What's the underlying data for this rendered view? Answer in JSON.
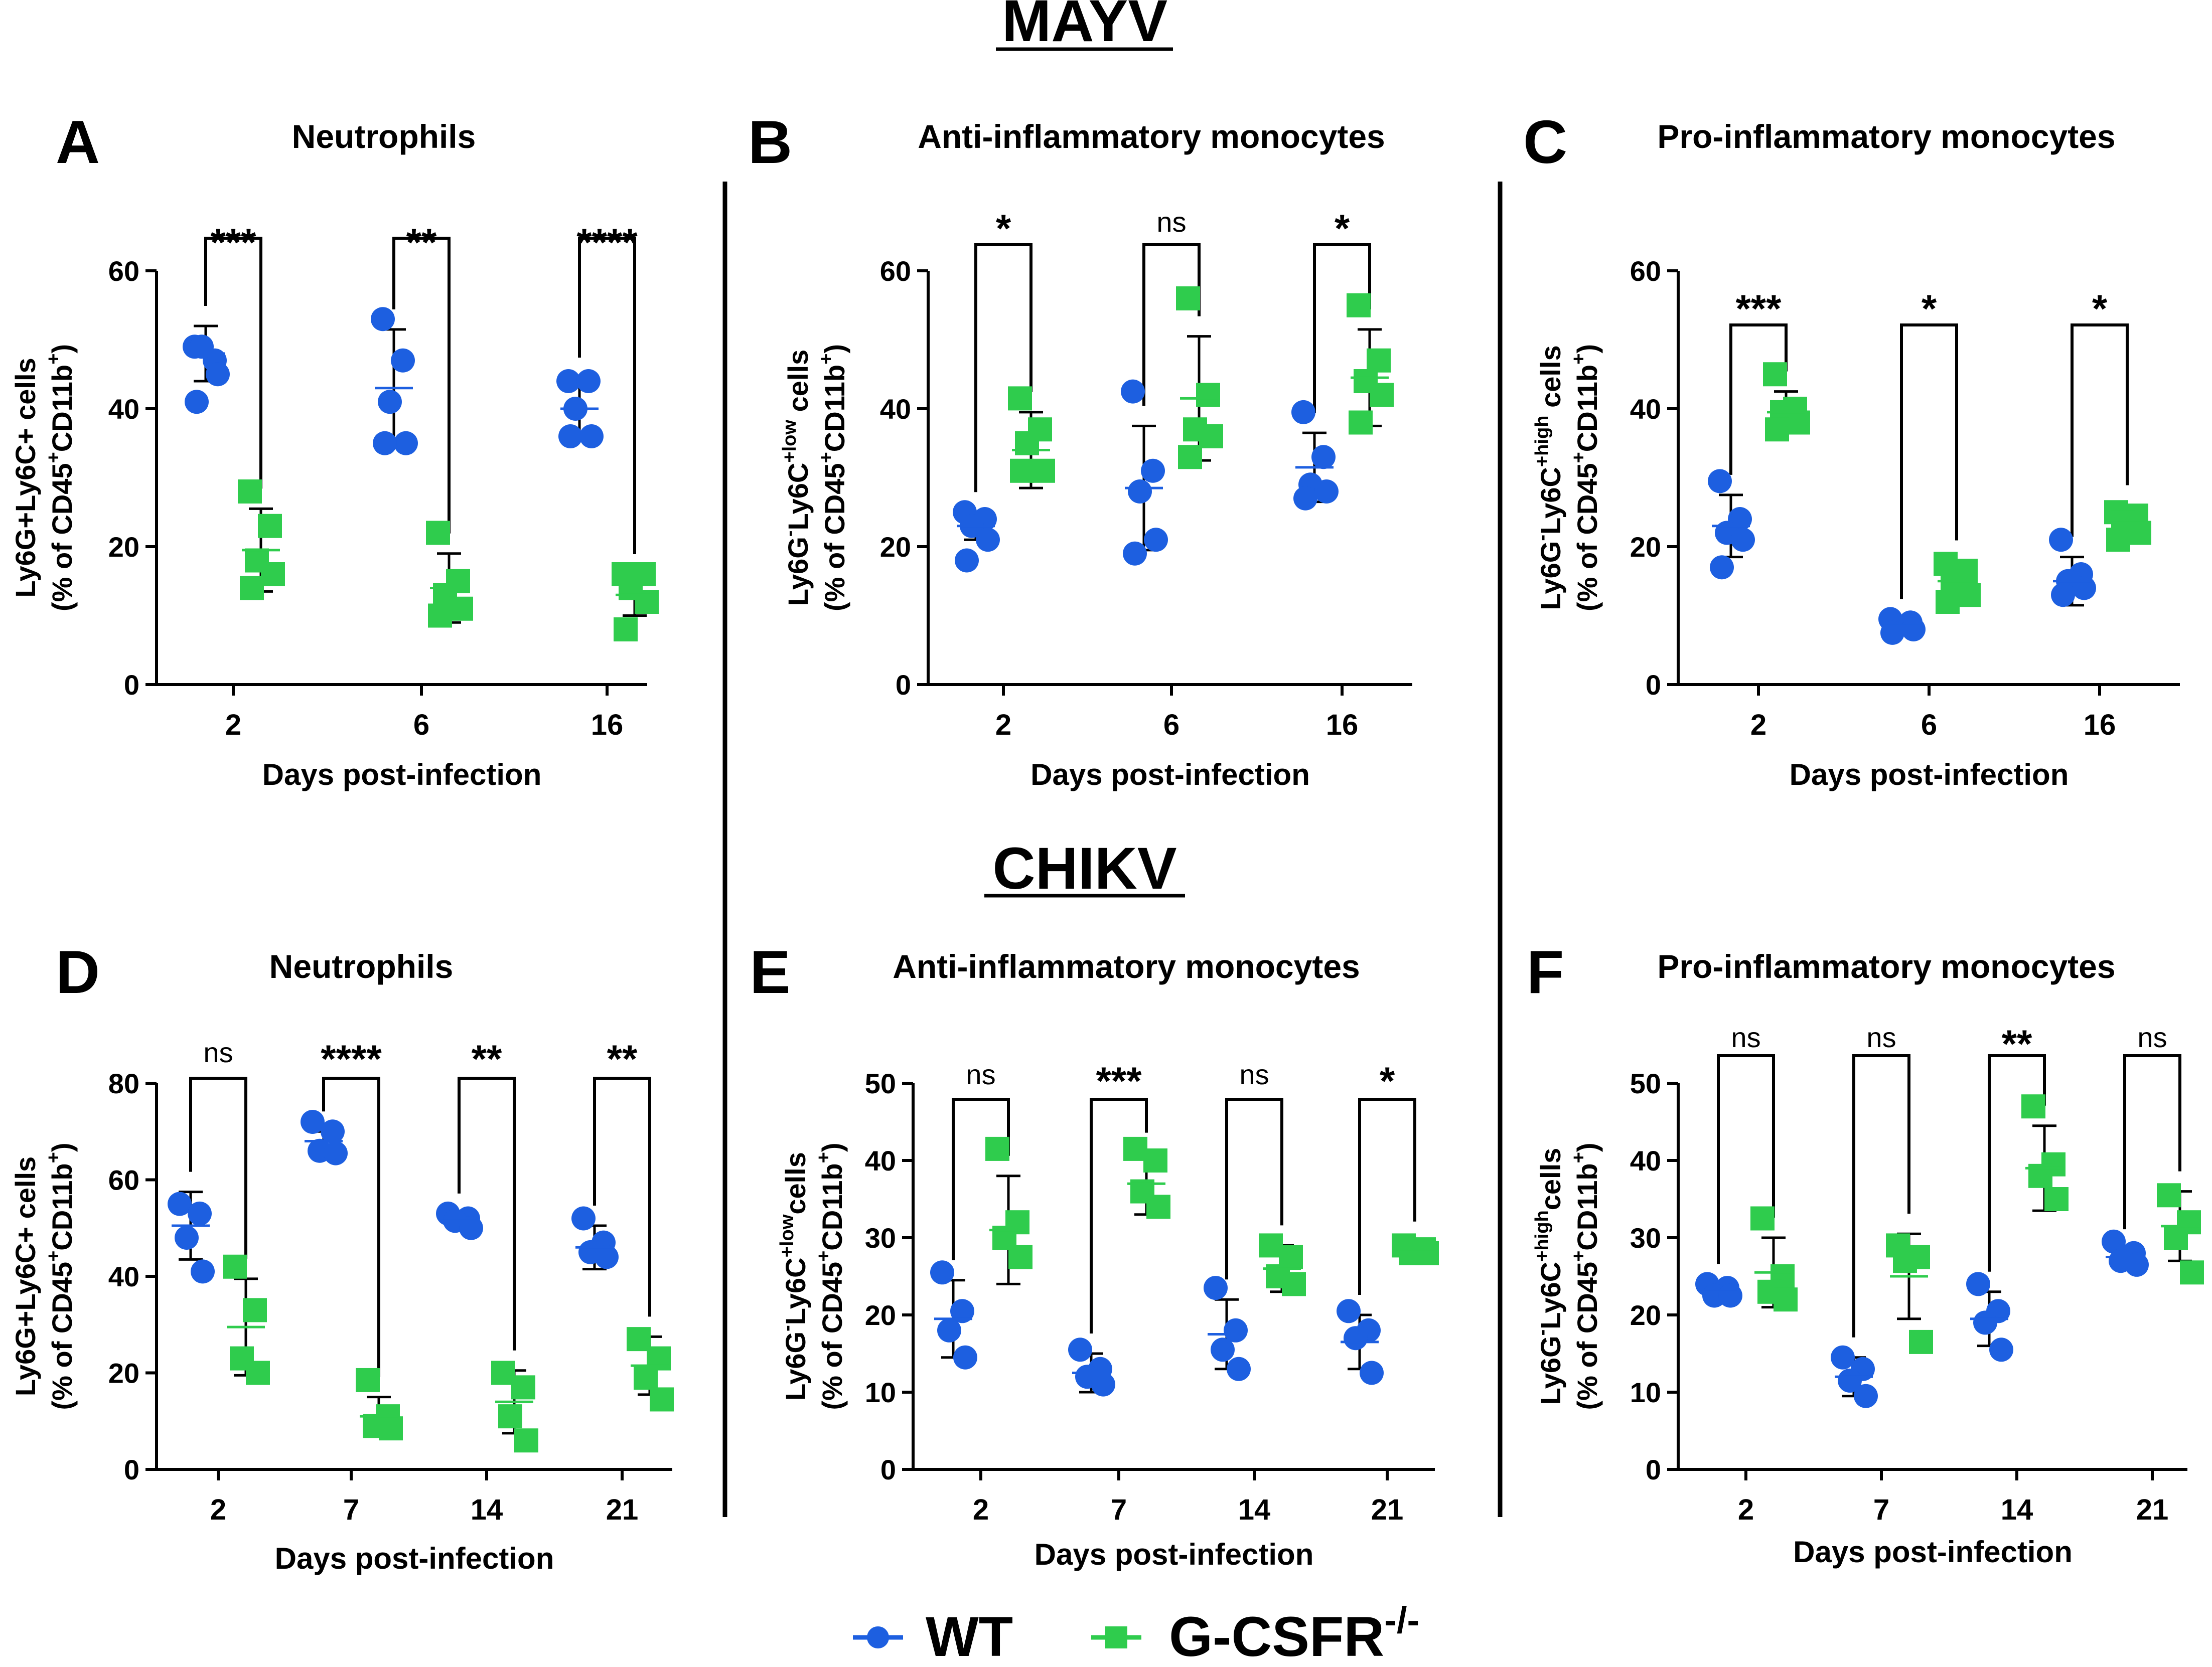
{
  "figure": {
    "mayv_heading": "MAYV",
    "chikv_heading": "CHIKV",
    "legend": {
      "wt": "WT",
      "ko_base": "G-CSFR",
      "ko_sup": "-/-"
    },
    "colors": {
      "wt": "#1d5fe0",
      "ko": "#2fcc4d",
      "ink": "#000000"
    }
  },
  "chart_data": [
    {
      "id": "A",
      "type": "scatter",
      "panel_label": "A",
      "title": "Neutrophils",
      "ylabel_parts": [
        [
          "Ly6G+Ly6C+ cells",
          ""
        ]
      ],
      "ylabel_line2": [
        [
          "(% of CD45",
          ""
        ],
        [
          "+",
          "sup"
        ],
        [
          "CD11b",
          ""
        ],
        [
          "+",
          "sup"
        ],
        [
          ")",
          ""
        ]
      ],
      "xlabel": "Days post-infection",
      "ylim": [
        0,
        60
      ],
      "yticks": [
        0,
        20,
        40,
        60
      ],
      "categories": [
        "2",
        "6",
        "16"
      ],
      "significance": [
        "***",
        "**",
        "****"
      ],
      "series": [
        {
          "name": "WT",
          "mean": [
            48,
            43,
            40
          ],
          "sd": [
            4,
            8.5,
            4.5
          ],
          "points": [
            [
              49,
              47,
              49,
              45,
              41
            ],
            [
              53,
              47,
              41,
              35,
              35
            ],
            [
              44,
              44,
              40,
              36,
              36
            ]
          ]
        },
        {
          "name": "G-CSFR-/-",
          "mean": [
            19.5,
            14,
            13
          ],
          "sd": [
            6,
            5,
            3
          ],
          "points": [
            [
              28,
              23,
              18,
              16,
              14
            ],
            [
              22,
              15,
              13,
              11,
              10
            ],
            [
              16,
              16,
              14,
              12,
              8
            ]
          ]
        }
      ]
    },
    {
      "id": "B",
      "type": "scatter",
      "panel_label": "B",
      "title": "Anti-inflammatory monocytes",
      "ylabel_parts": [
        [
          "Ly6G",
          ""
        ],
        [
          "-",
          "sup"
        ],
        [
          "Ly6C",
          ""
        ],
        [
          "+low",
          "sup"
        ],
        [
          " cells",
          ""
        ]
      ],
      "ylabel_line2": [
        [
          "(% of CD45",
          ""
        ],
        [
          "+",
          "sup"
        ],
        [
          "CD11b",
          ""
        ],
        [
          "+",
          "sup"
        ],
        [
          ")",
          ""
        ]
      ],
      "xlabel": "Days post-infection",
      "ylim": [
        0,
        60
      ],
      "yticks": [
        0,
        20,
        40,
        60
      ],
      "categories": [
        "2",
        "6",
        "16"
      ],
      "significance": [
        "*",
        "ns",
        "*"
      ],
      "series": [
        {
          "name": "WT",
          "mean": [
            23,
            28.5,
            31.5
          ],
          "sd": [
            2,
            9,
            5
          ],
          "points": [
            [
              25,
              24,
              23,
              21,
              18
            ],
            [
              42.5,
              31,
              28,
              21,
              19
            ],
            [
              39.5,
              33,
              29,
              28,
              27
            ]
          ]
        },
        {
          "name": "G-CSFR-/-",
          "mean": [
            34,
            41.5,
            44.5
          ],
          "sd": [
            5.5,
            9,
            7
          ],
          "points": [
            [
              41.5,
              37,
              35,
              31,
              31
            ],
            [
              56,
              42,
              37,
              36,
              33
            ],
            [
              55,
              47,
              44,
              42,
              38
            ]
          ]
        }
      ]
    },
    {
      "id": "C",
      "type": "scatter",
      "panel_label": "C",
      "title": "Pro-inflammatory monocytes",
      "ylabel_parts": [
        [
          "Ly6G",
          ""
        ],
        [
          "-",
          "sup"
        ],
        [
          "Ly6C",
          ""
        ],
        [
          "+high",
          "sup"
        ],
        [
          " cells",
          ""
        ]
      ],
      "ylabel_line2": [
        [
          "(% of CD45",
          ""
        ],
        [
          "+",
          "sup"
        ],
        [
          "CD11b",
          ""
        ],
        [
          "+",
          "sup"
        ],
        [
          ")",
          ""
        ]
      ],
      "xlabel": "Days post-infection",
      "ylim": [
        0,
        60
      ],
      "yticks": [
        0,
        20,
        40,
        60
      ],
      "categories": [
        "2",
        "6",
        "16"
      ],
      "significance": [
        "***",
        "*",
        "*"
      ],
      "series": [
        {
          "name": "WT",
          "mean": [
            23,
            8.5,
            15
          ],
          "sd": [
            4.5,
            1,
            3.5
          ],
          "points": [
            [
              29.5,
              24,
              22,
              21,
              17
            ],
            [
              9.5,
              9,
              8.5,
              8,
              7.5
            ],
            [
              21,
              16,
              15,
              14,
              13
            ]
          ]
        },
        {
          "name": "G-CSFR-/-",
          "mean": [
            39.5,
            15,
            23.5
          ],
          "sd": [
            3,
            3,
            2.5
          ],
          "points": [
            [
              45,
              40,
              39.5,
              38,
              37
            ],
            [
              17.5,
              16.5,
              15,
              13,
              12
            ],
            [
              25,
              24.5,
              23.5,
              22,
              21
            ]
          ]
        }
      ]
    },
    {
      "id": "D",
      "type": "scatter",
      "panel_label": "D",
      "title": "Neutrophils",
      "ylabel_parts": [
        [
          "Ly6G+Ly6C+ cells",
          ""
        ]
      ],
      "ylabel_line2": [
        [
          "(% of CD45",
          ""
        ],
        [
          "+",
          "sup"
        ],
        [
          "CD11b",
          ""
        ],
        [
          "+",
          "sup"
        ],
        [
          ")",
          ""
        ]
      ],
      "xlabel": "Days post-infection",
      "ylim": [
        0,
        80
      ],
      "yticks": [
        0,
        20,
        40,
        60,
        80
      ],
      "categories": [
        "2",
        "7",
        "14",
        "21"
      ],
      "significance": [
        "ns",
        "****",
        "**",
        "**"
      ],
      "series": [
        {
          "name": "WT",
          "mean": [
            50.5,
            68,
            51.5,
            46
          ],
          "sd": [
            7,
            2,
            1.5,
            4.5
          ],
          "points": [
            [
              55,
              53,
              48,
              41
            ],
            [
              72,
              70,
              66,
              65.5
            ],
            [
              53,
              52,
              51.5,
              50
            ],
            [
              52,
              47,
              45,
              44
            ]
          ]
        },
        {
          "name": "G-CSFR-/-",
          "mean": [
            29.5,
            11,
            14,
            21.5
          ],
          "sd": [
            10,
            4,
            6.5,
            6
          ],
          "points": [
            [
              42,
              33,
              23,
              20
            ],
            [
              18.5,
              11,
              9,
              8.5
            ],
            [
              20,
              17,
              11,
              6
            ],
            [
              27,
              23,
              19,
              14.5
            ]
          ]
        }
      ]
    },
    {
      "id": "E",
      "type": "scatter",
      "panel_label": "E",
      "title": "Anti-inflammatory monocytes",
      "ylabel_parts": [
        [
          "Ly6G",
          ""
        ],
        [
          "-",
          "sup"
        ],
        [
          "Ly6C",
          ""
        ],
        [
          "+low",
          "sup"
        ],
        [
          "cells",
          ""
        ]
      ],
      "ylabel_line2": [
        [
          "(% of CD45",
          ""
        ],
        [
          "+",
          "sup"
        ],
        [
          "CD11b",
          ""
        ],
        [
          "+",
          "sup"
        ],
        [
          ")",
          ""
        ]
      ],
      "xlabel": "Days post-infection",
      "ylim": [
        0,
        50
      ],
      "yticks": [
        0,
        10,
        20,
        30,
        40,
        50
      ],
      "categories": [
        "2",
        "7",
        "14",
        "21"
      ],
      "significance": [
        "ns",
        "***",
        "ns",
        "*"
      ],
      "series": [
        {
          "name": "WT",
          "mean": [
            19.5,
            12.5,
            17.5,
            16.5
          ],
          "sd": [
            5,
            2.5,
            4.5,
            3.5
          ],
          "points": [
            [
              25.5,
              20.5,
              18,
              14.5
            ],
            [
              15.5,
              13,
              12,
              11
            ],
            [
              23.5,
              18,
              15.5,
              13
            ],
            [
              20.5,
              18,
              17,
              12.5
            ]
          ]
        },
        {
          "name": "G-CSFR-/-",
          "mean": [
            31,
            37,
            26,
            28.5
          ],
          "sd": [
            7,
            4,
            3,
            1
          ],
          "points": [
            [
              41.5,
              32,
              30,
              27.5
            ],
            [
              41.5,
              40,
              36,
              34
            ],
            [
              29,
              27.5,
              25,
              24
            ],
            [
              29,
              28.5,
              28,
              28
            ]
          ]
        }
      ]
    },
    {
      "id": "F",
      "type": "scatter",
      "panel_label": "F",
      "title": "Pro-inflammatory monocytes",
      "ylabel_parts": [
        [
          "Ly6G",
          ""
        ],
        [
          "-",
          "sup"
        ],
        [
          "Ly6C",
          ""
        ],
        [
          "+high",
          "sup"
        ],
        [
          "cells",
          ""
        ]
      ],
      "ylabel_line2": [
        [
          "(% of CD45",
          ""
        ],
        [
          "+",
          "sup"
        ],
        [
          "CD11b",
          ""
        ],
        [
          "+",
          "sup"
        ],
        [
          ")",
          ""
        ]
      ],
      "xlabel": "Days post-infection",
      "ylim": [
        0,
        50
      ],
      "yticks": [
        0,
        10,
        20,
        30,
        40,
        50
      ],
      "categories": [
        "2",
        "7",
        "14",
        "21"
      ],
      "significance": [
        "ns",
        "ns",
        "**",
        "ns"
      ],
      "series": [
        {
          "name": "WT",
          "mean": [
            23,
            12,
            19.5,
            27.5
          ],
          "sd": [
            1,
            2.5,
            3.5,
            1
          ],
          "points": [
            [
              24,
              23.5,
              22.5,
              22.5
            ],
            [
              14.5,
              13,
              11.5,
              9.5
            ],
            [
              24,
              20.5,
              19,
              15.5
            ],
            [
              29.5,
              28,
              27,
              26.5
            ]
          ]
        },
        {
          "name": "G-CSFR-/-",
          "mean": [
            25.5,
            25,
            39,
            31.5
          ],
          "sd": [
            4.5,
            5.5,
            5.5,
            4.5
          ],
          "points": [
            [
              32.5,
              25,
              23,
              22
            ],
            [
              29,
              27.5,
              27,
              16.5
            ],
            [
              47,
              39.5,
              38,
              35
            ],
            [
              35.5,
              32,
              30,
              25.5
            ]
          ]
        }
      ]
    }
  ]
}
